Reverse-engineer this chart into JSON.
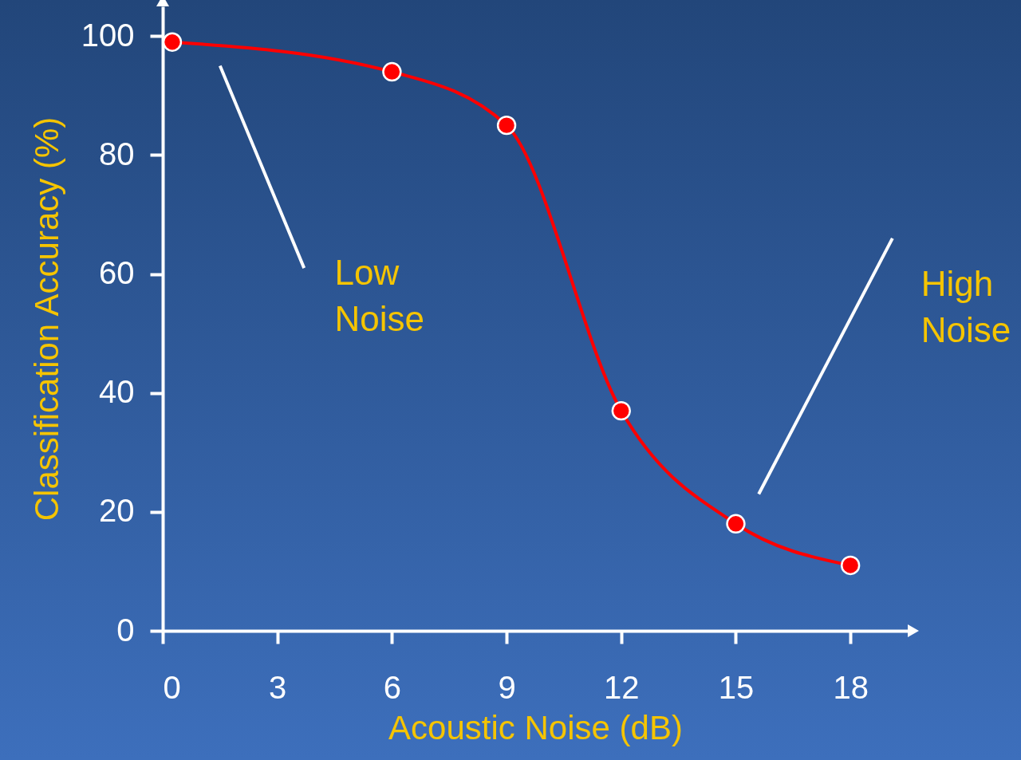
{
  "chart_data": {
    "type": "line",
    "xlabel": "Acoustic Noise (dB)",
    "ylabel": "Classification Accuracy (%)",
    "x": [
      0.25,
      6,
      9,
      12,
      15,
      18
    ],
    "series": [
      {
        "color": "#ff0000",
        "values": [
          99,
          94,
          85,
          37,
          18,
          11
        ]
      }
    ],
    "xlim": [
      0,
      19.5
    ],
    "ylim": [
      0,
      105
    ],
    "xticks": [
      0,
      3,
      6,
      9,
      12,
      15,
      18
    ],
    "yticks": [
      0,
      20,
      40,
      60,
      80,
      100
    ],
    "marker": "circle",
    "line_style": "solid",
    "grid": false,
    "annotations": [
      "Low Noise",
      "High Noise"
    ]
  }
}
